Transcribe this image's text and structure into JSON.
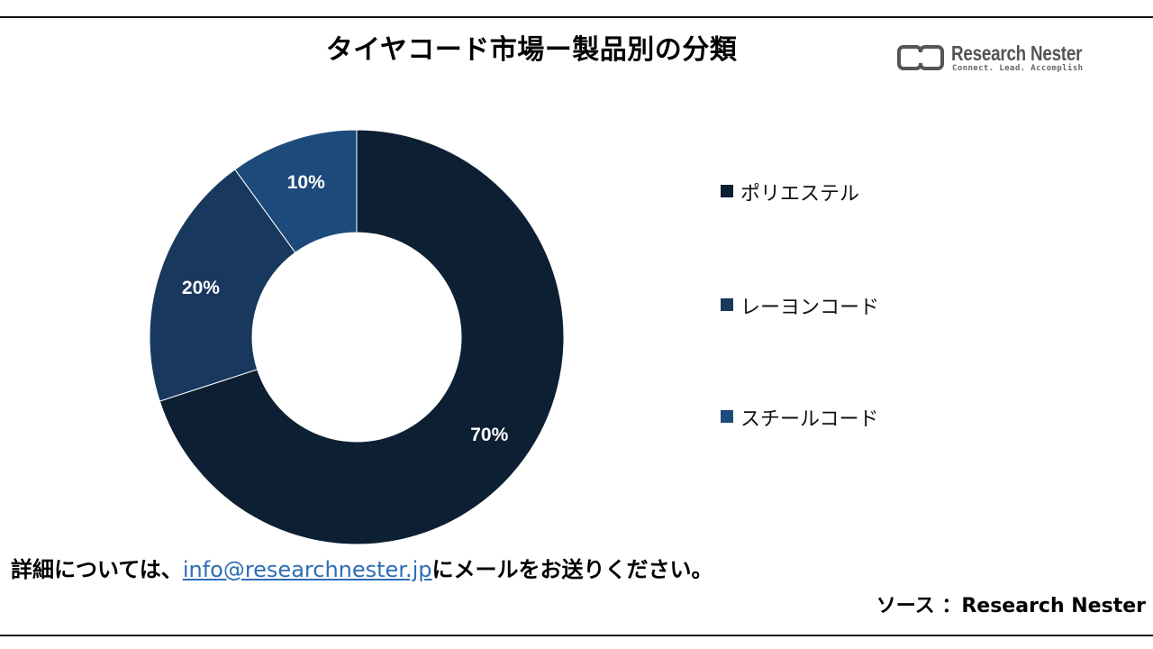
{
  "header": {
    "title": "タイヤコード市場ー製品別の分類",
    "logo_name": "Research Nester",
    "logo_tagline": "Connect. Lead. Accomplish"
  },
  "chart_data": {
    "type": "pie",
    "donut": true,
    "title": "タイヤコード市場ー製品別の分類",
    "categories": [
      "ポリエステル",
      "レーヨンコード",
      "スチールコード"
    ],
    "values": [
      70,
      20,
      10
    ],
    "data_labels": [
      "70%",
      "20%",
      "10%"
    ],
    "colors": [
      "#0d1f33",
      "#18385e",
      "#1c4a7a"
    ],
    "legend_position": "right",
    "start_angle_deg": 0,
    "direction": "clockwise"
  },
  "legend": {
    "items": [
      {
        "label": "ポリエステル",
        "color": "#0d1f33"
      },
      {
        "label": "レーヨンコード",
        "color": "#18385e"
      },
      {
        "label": "スチールコード",
        "color": "#1c4a7a"
      }
    ]
  },
  "footer": {
    "note_prefix": "詳細については、",
    "email": "info@researchnester.jp",
    "note_suffix": "にメールをお送りください。",
    "source": "ソース ：Research Nester"
  }
}
